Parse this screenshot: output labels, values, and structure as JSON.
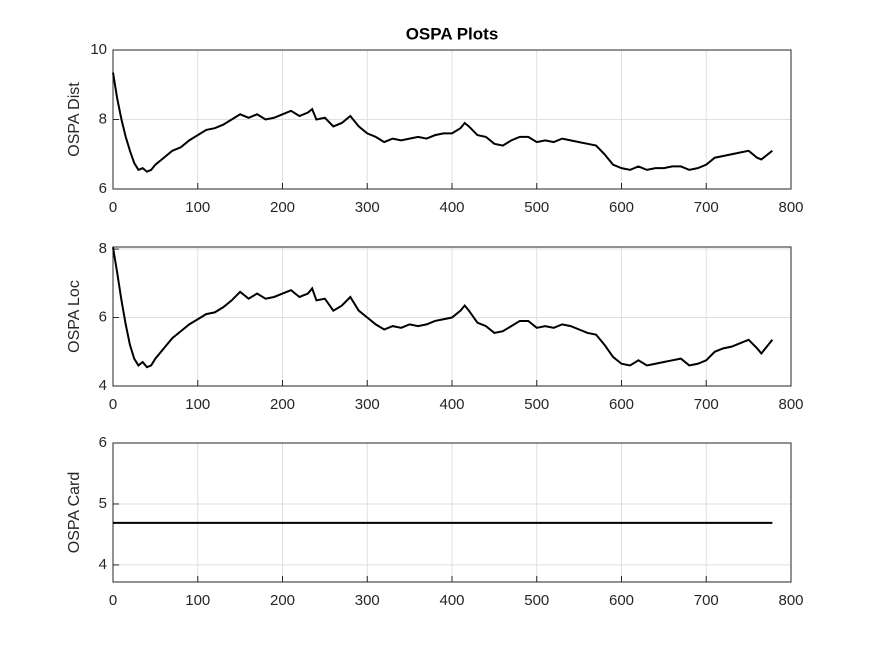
{
  "chart_data": [
    {
      "type": "line",
      "title": "OSPA Plots",
      "ylabel": "OSPA Dist",
      "color": "#000000",
      "grid": true,
      "xlim": [
        0,
        800
      ],
      "xticks": [
        0,
        100,
        200,
        300,
        400,
        500,
        600,
        700,
        800
      ],
      "ylim": [
        6,
        10
      ],
      "yticks": [
        6,
        8,
        10
      ],
      "x": [
        0,
        5,
        10,
        15,
        20,
        25,
        30,
        35,
        40,
        45,
        50,
        60,
        70,
        80,
        90,
        100,
        110,
        120,
        130,
        140,
        150,
        160,
        170,
        180,
        190,
        200,
        210,
        220,
        230,
        235,
        240,
        250,
        260,
        270,
        280,
        290,
        300,
        310,
        320,
        330,
        340,
        350,
        360,
        370,
        380,
        390,
        400,
        410,
        415,
        420,
        430,
        440,
        450,
        460,
        470,
        480,
        490,
        500,
        510,
        520,
        530,
        540,
        550,
        560,
        570,
        580,
        590,
        600,
        610,
        620,
        630,
        640,
        650,
        660,
        670,
        680,
        690,
        700,
        710,
        720,
        730,
        740,
        750,
        760,
        765,
        778
      ],
      "values": [
        9.35,
        8.6,
        8.0,
        7.5,
        7.1,
        6.75,
        6.55,
        6.6,
        6.5,
        6.55,
        6.7,
        6.9,
        7.1,
        7.2,
        7.4,
        7.55,
        7.7,
        7.75,
        7.85,
        8.0,
        8.15,
        8.05,
        8.15,
        8.0,
        8.05,
        8.15,
        8.25,
        8.1,
        8.2,
        8.3,
        8.0,
        8.05,
        7.8,
        7.9,
        8.1,
        7.8,
        7.6,
        7.5,
        7.35,
        7.45,
        7.4,
        7.45,
        7.5,
        7.45,
        7.55,
        7.6,
        7.6,
        7.75,
        7.9,
        7.8,
        7.55,
        7.5,
        7.3,
        7.25,
        7.4,
        7.5,
        7.5,
        7.35,
        7.4,
        7.35,
        7.45,
        7.4,
        7.35,
        7.3,
        7.25,
        7.0,
        6.7,
        6.6,
        6.55,
        6.65,
        6.55,
        6.6,
        6.6,
        6.65,
        6.65,
        6.55,
        6.6,
        6.7,
        6.9,
        6.95,
        7.0,
        7.05,
        7.1,
        6.9,
        6.85,
        7.1
      ]
    },
    {
      "type": "line",
      "ylabel": "OSPA Loc",
      "color": "#000000",
      "grid": true,
      "xlim": [
        0,
        800
      ],
      "xticks": [
        0,
        100,
        200,
        300,
        400,
        500,
        600,
        700,
        800
      ],
      "ylim": [
        4,
        8.06
      ],
      "yticks": [
        4,
        6,
        8
      ],
      "x": [
        0,
        5,
        10,
        15,
        20,
        25,
        30,
        35,
        40,
        45,
        50,
        60,
        70,
        80,
        90,
        100,
        110,
        120,
        130,
        140,
        150,
        160,
        170,
        180,
        190,
        200,
        210,
        220,
        230,
        235,
        240,
        250,
        260,
        270,
        280,
        290,
        300,
        310,
        320,
        330,
        340,
        350,
        360,
        370,
        380,
        390,
        400,
        410,
        415,
        420,
        430,
        440,
        450,
        460,
        470,
        480,
        490,
        500,
        510,
        520,
        530,
        540,
        550,
        560,
        570,
        580,
        590,
        600,
        610,
        620,
        630,
        640,
        650,
        660,
        670,
        680,
        690,
        700,
        710,
        720,
        730,
        740,
        750,
        760,
        765,
        778
      ],
      "values": [
        8.05,
        7.3,
        6.5,
        5.8,
        5.2,
        4.8,
        4.6,
        4.7,
        4.55,
        4.6,
        4.8,
        5.1,
        5.4,
        5.6,
        5.8,
        5.95,
        6.1,
        6.15,
        6.3,
        6.5,
        6.75,
        6.55,
        6.7,
        6.55,
        6.6,
        6.7,
        6.8,
        6.6,
        6.7,
        6.85,
        6.5,
        6.55,
        6.2,
        6.35,
        6.6,
        6.2,
        6.0,
        5.8,
        5.65,
        5.75,
        5.7,
        5.8,
        5.75,
        5.8,
        5.9,
        5.95,
        6.0,
        6.2,
        6.35,
        6.2,
        5.85,
        5.75,
        5.55,
        5.6,
        5.75,
        5.9,
        5.9,
        5.7,
        5.75,
        5.7,
        5.8,
        5.75,
        5.65,
        5.55,
        5.5,
        5.2,
        4.85,
        4.65,
        4.6,
        4.75,
        4.6,
        4.65,
        4.7,
        4.75,
        4.8,
        4.6,
        4.65,
        4.75,
        5.0,
        5.1,
        5.15,
        5.25,
        5.35,
        5.1,
        4.95,
        5.35
      ]
    },
    {
      "type": "line",
      "ylabel": "OSPA Card",
      "color": "#000000",
      "grid": true,
      "xlim": [
        0,
        800
      ],
      "xticks": [
        0,
        100,
        200,
        300,
        400,
        500,
        600,
        700,
        800
      ],
      "ylim": [
        3.72,
        6
      ],
      "yticks": [
        4,
        5,
        6
      ],
      "x": [
        0,
        778
      ],
      "values": [
        4.69,
        4.69
      ]
    }
  ]
}
